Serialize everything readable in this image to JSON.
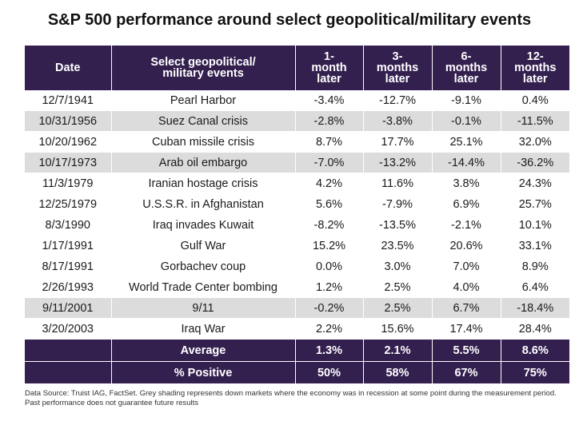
{
  "title": "S&P 500 performance around select geopolitical/military events",
  "table": {
    "headers": [
      [
        "Date"
      ],
      [
        "Select geopolitical/",
        "military events"
      ],
      [
        "1-",
        "month",
        "later"
      ],
      [
        "3-",
        "months",
        "later"
      ],
      [
        "6-",
        "months",
        "later"
      ],
      [
        "12-",
        "months",
        "later"
      ]
    ],
    "rows": [
      {
        "date": "12/7/1941",
        "event": "Pearl Harbor",
        "m1": "-3.4%",
        "m3": "-12.7%",
        "m6": "-9.1%",
        "m12": "0.4%",
        "shaded": false
      },
      {
        "date": "10/31/1956",
        "event": "Suez Canal crisis",
        "m1": "-2.8%",
        "m3": "-3.8%",
        "m6": "-0.1%",
        "m12": "-11.5%",
        "shaded": true
      },
      {
        "date": "10/20/1962",
        "event": "Cuban missile crisis",
        "m1": "8.7%",
        "m3": "17.7%",
        "m6": "25.1%",
        "m12": "32.0%",
        "shaded": false
      },
      {
        "date": "10/17/1973",
        "event": "Arab oil embargo",
        "m1": "-7.0%",
        "m3": "-13.2%",
        "m6": "-14.4%",
        "m12": "-36.2%",
        "shaded": true
      },
      {
        "date": "11/3/1979",
        "event": "Iranian hostage crisis",
        "m1": "4.2%",
        "m3": "11.6%",
        "m6": "3.8%",
        "m12": "24.3%",
        "shaded": false
      },
      {
        "date": "12/25/1979",
        "event": "U.S.S.R. in Afghanistan",
        "m1": "5.6%",
        "m3": "-7.9%",
        "m6": "6.9%",
        "m12": "25.7%",
        "shaded": false
      },
      {
        "date": "8/3/1990",
        "event": "Iraq invades Kuwait",
        "m1": "-8.2%",
        "m3": "-13.5%",
        "m6": "-2.1%",
        "m12": "10.1%",
        "shaded": false
      },
      {
        "date": "1/17/1991",
        "event": "Gulf War",
        "m1": "15.2%",
        "m3": "23.5%",
        "m6": "20.6%",
        "m12": "33.1%",
        "shaded": false
      },
      {
        "date": "8/17/1991",
        "event": "Gorbachev coup",
        "m1": "0.0%",
        "m3": "3.0%",
        "m6": "7.0%",
        "m12": "8.9%",
        "shaded": false
      },
      {
        "date": "2/26/1993",
        "event": "World Trade Center bombing",
        "m1": "1.2%",
        "m3": "2.5%",
        "m6": "4.0%",
        "m12": "6.4%",
        "shaded": false
      },
      {
        "date": "9/11/2001",
        "event": "9/11",
        "m1": "-0.2%",
        "m3": "2.5%",
        "m6": "6.7%",
        "m12": "-18.4%",
        "shaded": true
      },
      {
        "date": "3/20/2003",
        "event": "Iraq War",
        "m1": "2.2%",
        "m3": "15.6%",
        "m6": "17.4%",
        "m12": "28.4%",
        "shaded": false
      }
    ],
    "summary": [
      {
        "label": "Average",
        "m1": "1.3%",
        "m3": "2.1%",
        "m6": "5.5%",
        "m12": "8.6%"
      },
      {
        "label": "% Positive",
        "m1": "50%",
        "m3": "58%",
        "m6": "67%",
        "m12": "75%"
      }
    ]
  },
  "footnote": "Data Source: Truist IAG, FactSet. Grey shading represents down markets where the economy was in recession at some point during the measurement period. Past performance does not guarantee future results",
  "colors": {
    "header_bg": "#33204f",
    "shade": "#dcdcdc"
  }
}
